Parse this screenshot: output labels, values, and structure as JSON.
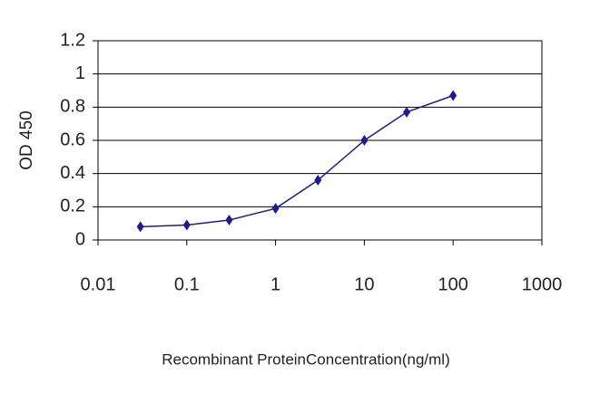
{
  "chart_data": {
    "type": "line",
    "y_label": "OD 450",
    "x_label": "Recombinant ProteinConcentration(ng/ml)",
    "x": [
      0.03,
      0.1,
      0.3,
      1,
      3,
      10,
      30,
      100
    ],
    "values": [
      0.08,
      0.09,
      0.12,
      0.19,
      0.36,
      0.6,
      0.77,
      0.87
    ],
    "color": "#1c1c8f",
    "xscale": "log",
    "xlim": [
      0.01,
      1000
    ],
    "xticks": [
      0.01,
      0.1,
      1,
      10,
      100,
      1000
    ],
    "ylim": [
      0,
      1.2
    ],
    "yticks": [
      0,
      0.2,
      0.4,
      0.6,
      0.8,
      1,
      1.2
    ],
    "grid": true
  }
}
